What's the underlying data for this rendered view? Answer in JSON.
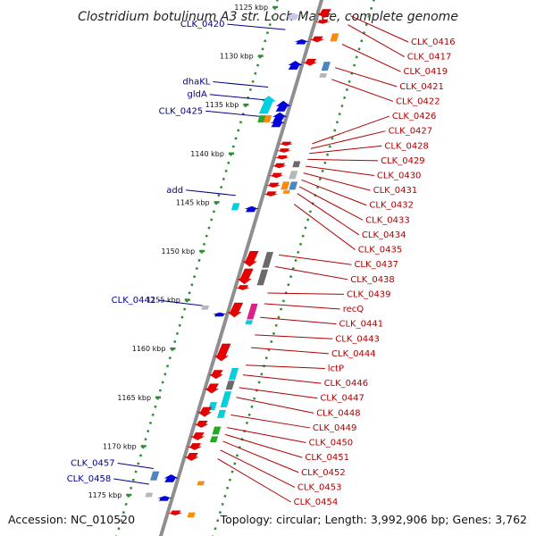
{
  "title": "Clostridium botulinum A3 str. Loch Maree, complete genome",
  "footer": {
    "accession": "Accession: NC_010520",
    "topology": "Topology: circular; Length: 3,992,906 bp; Genes: 3,762"
  },
  "kbp_ticks": [
    {
      "label": "1125 kbp",
      "kbp": 1125,
      "faded": true
    },
    {
      "label": "1130 kbp",
      "kbp": 1130
    },
    {
      "label": "1135 kbp",
      "kbp": 1135
    },
    {
      "label": "1140 kbp",
      "kbp": 1140
    },
    {
      "label": "1145 kbp",
      "kbp": 1145
    },
    {
      "label": "1150 kbp",
      "kbp": 1150
    },
    {
      "label": "1155 kbp",
      "kbp": 1155
    },
    {
      "label": "1160 kbp",
      "kbp": 1160
    },
    {
      "label": "1165 kbp",
      "kbp": 1165
    },
    {
      "label": "1170 kbp",
      "kbp": 1170
    },
    {
      "label": "1175 kbp",
      "kbp": 1175
    }
  ],
  "left_labels": [
    {
      "text": "CLK_0420",
      "kbp": 1127.3
    },
    {
      "text": "dhaKL",
      "kbp": 1133.2
    },
    {
      "text": "gldA",
      "kbp": 1134.5
    },
    {
      "text": "CLK_0425",
      "kbp": 1136.2
    },
    {
      "text": "add",
      "kbp": 1144.3
    },
    {
      "text": "CLK_0442",
      "kbp": 1155.6
    },
    {
      "text": "CLK_0457",
      "kbp": 1172.3
    },
    {
      "text": "CLK_0458",
      "kbp": 1173.9
    }
  ],
  "right_labels": [
    {
      "text": "CLK_0416",
      "kbp": 1125.9
    },
    {
      "text": "CLK_0417",
      "kbp": 1126.8
    },
    {
      "text": "CLK_0419",
      "kbp": 1128.8
    },
    {
      "text": "CLK_0421",
      "kbp": 1131.2
    },
    {
      "text": "CLK_0422",
      "kbp": 1132.4
    },
    {
      "text": "CLK_0426",
      "kbp": 1139.0
    },
    {
      "text": "CLK_0427",
      "kbp": 1139.5
    },
    {
      "text": "CLK_0428",
      "kbp": 1140.0
    },
    {
      "text": "CLK_0429",
      "kbp": 1140.6
    },
    {
      "text": "CLK_0430",
      "kbp": 1141.3
    },
    {
      "text": "CLK_0431",
      "kbp": 1142.0
    },
    {
      "text": "CLK_0432",
      "kbp": 1142.7
    },
    {
      "text": "CLK_0433",
      "kbp": 1143.4
    },
    {
      "text": "CLK_0434",
      "kbp": 1144.1
    },
    {
      "text": "CLK_0435",
      "kbp": 1145.2
    },
    {
      "text": "CLK_0437",
      "kbp": 1150.4
    },
    {
      "text": "CLK_0438",
      "kbp": 1151.6
    },
    {
      "text": "CLK_0439",
      "kbp": 1154.3
    },
    {
      "text": "recQ",
      "kbp": 1155.4
    },
    {
      "text": "CLK_0441",
      "kbp": 1156.8
    },
    {
      "text": "CLK_0443",
      "kbp": 1158.6
    },
    {
      "text": "CLK_0444",
      "kbp": 1159.9
    },
    {
      "text": "lctP",
      "kbp": 1161.7
    },
    {
      "text": "CLK_0446",
      "kbp": 1162.7
    },
    {
      "text": "CLK_0447",
      "kbp": 1164.0
    },
    {
      "text": "CLK_0448",
      "kbp": 1165.0
    },
    {
      "text": "CLK_0449",
      "kbp": 1166.8
    },
    {
      "text": "CLK_0450",
      "kbp": 1168.1
    },
    {
      "text": "CLK_0451",
      "kbp": 1168.8
    },
    {
      "text": "CLK_0452",
      "kbp": 1169.5
    },
    {
      "text": "CLK_0453",
      "kbp": 1170.4
    },
    {
      "text": "CLK_0454",
      "kbp": 1171.3
    }
  ],
  "colors": {
    "backbone": "#8f8f8f",
    "ruler_dots": "#2e8b2e",
    "left_text": "#00008b",
    "right_text": "#b00000",
    "fwd_gene": "#0000dd",
    "rev_gene": "#e60000",
    "cyan_feature": "#00d0e0",
    "grey_feature": "#6a6a6a",
    "light_grey_feature": "#b8b8b8",
    "orange_feature": "#ff8c00",
    "green_feature": "#22aa22",
    "magenta_feature": "#e0208a",
    "steelblue_feature": "#4a86c0",
    "lavender_feature": "#c8c8ee"
  },
  "features": [
    {
      "type": "fwd",
      "slot": -3,
      "kbp": 1125.6,
      "len": 0.7,
      "color": "lavender"
    },
    {
      "type": "fwd",
      "slot": -1,
      "kbp": 1128.3,
      "len": 0.5
    },
    {
      "type": "fwd",
      "slot": -1,
      "kbp": 1130.5,
      "len": 0.9
    },
    {
      "type": "fwd",
      "slot": -3,
      "kbp": 1134.1,
      "len": 1.8,
      "color": "cyan"
    },
    {
      "type": "fwd",
      "slot": -1,
      "kbp": 1134.6,
      "len": 1.1
    },
    {
      "type": "fwd",
      "slot": -1,
      "kbp": 1135.8,
      "len": 0.9
    },
    {
      "type": "box",
      "slot": -3,
      "kbp": 1136.1,
      "len": 0.7,
      "color": "green"
    },
    {
      "type": "box",
      "slot": -2.3,
      "kbp": 1136.1,
      "len": 0.7,
      "color": "orange"
    },
    {
      "type": "fwd",
      "slot": -1,
      "kbp": 1136.5,
      "len": 0.8
    },
    {
      "type": "box",
      "slot": -3,
      "kbp": 1145.1,
      "len": 0.7,
      "color": "cyan"
    },
    {
      "type": "fwd",
      "slot": -1,
      "kbp": 1145.4,
      "len": 0.6
    },
    {
      "type": "box",
      "slot": -3,
      "kbp": 1155.6,
      "len": 0.4,
      "color": "light_grey"
    },
    {
      "type": "fwd",
      "slot": -1,
      "kbp": 1156.3,
      "len": 0.4
    },
    {
      "type": "box",
      "slot": -3,
      "kbp": 1172.6,
      "len": 0.9,
      "color": "steelblue"
    },
    {
      "type": "fwd",
      "slot": -1,
      "kbp": 1172.9,
      "len": 0.8
    },
    {
      "type": "box",
      "slot": -3,
      "kbp": 1174.8,
      "len": 0.4,
      "color": "light_grey"
    },
    {
      "type": "fwd",
      "slot": -1,
      "kbp": 1175.1,
      "len": 0.5
    },
    {
      "type": "rev",
      "slot": 1,
      "kbp": 1125.2,
      "len": 0.9
    },
    {
      "type": "rev",
      "slot": 1,
      "kbp": 1126.3,
      "len": 0.4
    },
    {
      "type": "box",
      "slot": 3,
      "kbp": 1127.7,
      "len": 0.8,
      "color": "orange"
    },
    {
      "type": "rev",
      "slot": 1,
      "kbp": 1128.0,
      "len": 0.6
    },
    {
      "type": "box",
      "slot": 3,
      "kbp": 1130.6,
      "len": 0.9,
      "color": "steelblue"
    },
    {
      "type": "rev",
      "slot": 1,
      "kbp": 1130.3,
      "len": 0.7
    },
    {
      "type": "box",
      "slot": 3,
      "kbp": 1131.8,
      "len": 0.4,
      "color": "light_grey"
    },
    {
      "type": "rev",
      "slot": 1,
      "kbp": 1138.8,
      "len": 0.4
    },
    {
      "type": "rev",
      "slot": 1,
      "kbp": 1139.5,
      "len": 0.4
    },
    {
      "type": "rev",
      "slot": 1,
      "kbp": 1140.2,
      "len": 0.4
    },
    {
      "type": "box",
      "slot": 3,
      "kbp": 1140.8,
      "len": 0.6,
      "color": "grey"
    },
    {
      "type": "rev",
      "slot": 1,
      "kbp": 1141.0,
      "len": 0.5
    },
    {
      "type": "box",
      "slot": 3,
      "kbp": 1141.8,
      "len": 0.8,
      "color": "light_grey"
    },
    {
      "type": "rev",
      "slot": 1,
      "kbp": 1142.0,
      "len": 0.5
    },
    {
      "type": "box",
      "slot": 2.4,
      "kbp": 1142.9,
      "len": 0.8,
      "color": "orange"
    },
    {
      "type": "box",
      "slot": 3.4,
      "kbp": 1142.9,
      "len": 0.8,
      "color": "steelblue"
    },
    {
      "type": "rev",
      "slot": 1,
      "kbp": 1143.0,
      "len": 0.5
    },
    {
      "type": "box",
      "slot": 2.8,
      "kbp": 1143.8,
      "len": 0.3,
      "color": "orange"
    },
    {
      "type": "rev",
      "slot": 1,
      "kbp": 1143.9,
      "len": 0.5
    },
    {
      "type": "rev",
      "slot": 1,
      "kbp": 1150.0,
      "len": 1.6
    },
    {
      "type": "box",
      "slot": 3,
      "kbp": 1150.1,
      "len": 1.6,
      "color": "grey"
    },
    {
      "type": "rev",
      "slot": 1,
      "kbp": 1151.8,
      "len": 1.6
    },
    {
      "type": "box",
      "slot": 3,
      "kbp": 1151.9,
      "len": 1.6,
      "color": "grey"
    },
    {
      "type": "rev",
      "slot": 1,
      "kbp": 1153.5,
      "len": 0.5
    },
    {
      "type": "rev",
      "slot": 1,
      "kbp": 1155.3,
      "len": 1.5
    },
    {
      "type": "box",
      "slot": 3,
      "kbp": 1155.4,
      "len": 1.6,
      "color": "magenta"
    },
    {
      "type": "box",
      "slot": 3,
      "kbp": 1157.1,
      "len": 0.4,
      "color": "cyan"
    },
    {
      "type": "rev",
      "slot": 1,
      "kbp": 1159.5,
      "len": 1.8
    },
    {
      "type": "box",
      "slot": 3,
      "kbp": 1162.0,
      "len": 1.2,
      "color": "cyan"
    },
    {
      "type": "rev",
      "slot": 1,
      "kbp": 1162.2,
      "len": 0.9
    },
    {
      "type": "box",
      "slot": 3,
      "kbp": 1163.3,
      "len": 0.9,
      "color": "grey"
    },
    {
      "type": "rev",
      "slot": 1,
      "kbp": 1163.6,
      "len": 1.0
    },
    {
      "type": "box",
      "slot": 3,
      "kbp": 1164.4,
      "len": 1.6,
      "color": "cyan"
    },
    {
      "type": "box",
      "slot": 1.6,
      "kbp": 1165.5,
      "len": 0.8,
      "color": "cyan"
    },
    {
      "type": "rev",
      "slot": 1,
      "kbp": 1166.0,
      "len": 1.0
    },
    {
      "type": "box",
      "slot": 3,
      "kbp": 1166.3,
      "len": 0.8,
      "color": "cyan"
    },
    {
      "type": "rev",
      "slot": 1,
      "kbp": 1167.4,
      "len": 0.7
    },
    {
      "type": "box",
      "slot": 3,
      "kbp": 1168.0,
      "len": 0.8,
      "color": "green"
    },
    {
      "type": "rev",
      "slot": 1,
      "kbp": 1168.6,
      "len": 0.8
    },
    {
      "type": "box",
      "slot": 3,
      "kbp": 1169.0,
      "len": 0.6,
      "color": "green"
    },
    {
      "type": "rev",
      "slot": 1,
      "kbp": 1169.7,
      "len": 0.7
    },
    {
      "type": "rev",
      "slot": 1,
      "kbp": 1170.7,
      "len": 0.8
    },
    {
      "type": "box",
      "slot": 3,
      "kbp": 1173.6,
      "len": 0.4,
      "color": "orange"
    },
    {
      "type": "rev",
      "slot": 1,
      "kbp": 1176.6,
      "len": 0.5
    },
    {
      "type": "box",
      "slot": 3,
      "kbp": 1176.8,
      "len": 0.5,
      "color": "orange"
    }
  ]
}
